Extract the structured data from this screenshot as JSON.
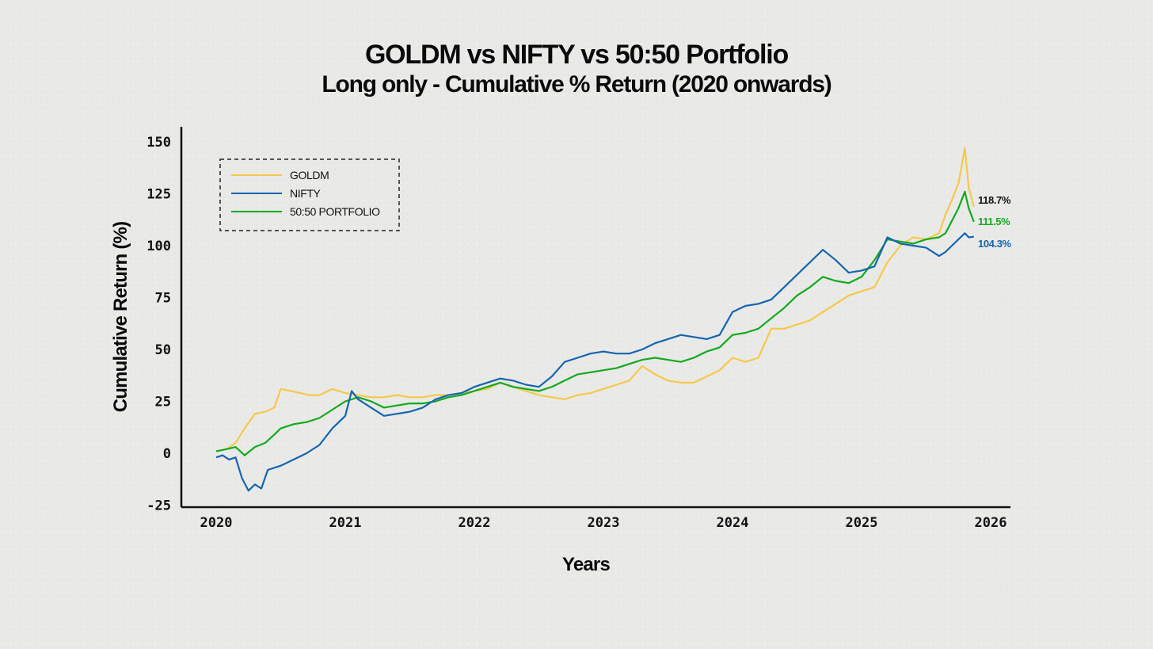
{
  "chart_data": {
    "type": "line",
    "title": "GOLDM vs NIFTY vs 50:50 Portfolio",
    "subtitle": "Long only - Cumulative % Return (2020 onwards)",
    "xlabel": "Years",
    "ylabel": "Cumulative Return (%)",
    "xlim": [
      2020,
      2026
    ],
    "ylim": [
      -25,
      160
    ],
    "x_ticks": [
      2020,
      2021,
      2022,
      2023,
      2024,
      2025,
      2026
    ],
    "x_tick_labels": [
      "2020",
      "2021",
      "2022",
      "2023",
      "2024",
      "2025",
      "2026"
    ],
    "y_ticks": [
      -25,
      0,
      25,
      50,
      75,
      100,
      125,
      150
    ],
    "y_tick_labels": [
      "-25",
      "0",
      "25",
      "50",
      "75",
      "100",
      "125",
      "150"
    ],
    "legend": {
      "position": "top-left",
      "entries": [
        "GOLDM",
        "NIFTY",
        "50:50 PORTFOLIO"
      ]
    },
    "series": [
      {
        "name": "GOLDM",
        "color": "#f6c84a",
        "end_label": "118.7%",
        "end_label_color": "#111111",
        "x": [
          2020.0,
          2020.08,
          2020.15,
          2020.22,
          2020.3,
          2020.38,
          2020.45,
          2020.5,
          2020.58,
          2020.65,
          2020.72,
          2020.8,
          2020.9,
          2021.0,
          2021.1,
          2021.2,
          2021.3,
          2021.4,
          2021.5,
          2021.6,
          2021.7,
          2021.8,
          2021.9,
          2022.0,
          2022.1,
          2022.2,
          2022.3,
          2022.4,
          2022.5,
          2022.6,
          2022.7,
          2022.8,
          2022.9,
          2023.0,
          2023.1,
          2023.2,
          2023.3,
          2023.4,
          2023.5,
          2023.6,
          2023.7,
          2023.8,
          2023.9,
          2024.0,
          2024.1,
          2024.2,
          2024.3,
          2024.4,
          2024.5,
          2024.6,
          2024.7,
          2024.8,
          2024.9,
          2025.0,
          2025.1,
          2025.2,
          2025.3,
          2025.4,
          2025.5,
          2025.6,
          2025.65,
          2025.7,
          2025.75,
          2025.8,
          2025.83,
          2025.87
        ],
        "values": [
          1,
          2,
          5,
          12,
          19,
          20,
          22,
          31,
          30,
          29,
          28,
          28,
          31,
          29,
          28,
          27,
          27,
          28,
          27,
          27,
          28,
          28,
          29,
          30,
          31,
          34,
          32,
          30,
          28,
          27,
          26,
          28,
          29,
          31,
          33,
          35,
          42,
          38,
          35,
          34,
          34,
          37,
          40,
          46,
          44,
          46,
          60,
          60,
          62,
          64,
          68,
          72,
          76,
          78,
          80,
          92,
          100,
          104,
          103,
          106,
          115,
          122,
          130,
          147,
          128,
          118.7
        ]
      },
      {
        "name": "NIFTY",
        "color": "#1565b0",
        "end_label": "104.3%",
        "end_label_color": "#1565b0",
        "x": [
          2020.0,
          2020.05,
          2020.1,
          2020.15,
          2020.2,
          2020.25,
          2020.3,
          2020.35,
          2020.4,
          2020.45,
          2020.5,
          2020.6,
          2020.7,
          2020.8,
          2020.9,
          2021.0,
          2021.05,
          2021.1,
          2021.2,
          2021.3,
          2021.4,
          2021.5,
          2021.6,
          2021.7,
          2021.8,
          2021.9,
          2022.0,
          2022.1,
          2022.2,
          2022.3,
          2022.4,
          2022.5,
          2022.6,
          2022.7,
          2022.8,
          2022.9,
          2023.0,
          2023.1,
          2023.2,
          2023.3,
          2023.4,
          2023.5,
          2023.6,
          2023.7,
          2023.8,
          2023.9,
          2024.0,
          2024.1,
          2024.2,
          2024.3,
          2024.4,
          2024.5,
          2024.6,
          2024.7,
          2024.8,
          2024.9,
          2025.0,
          2025.1,
          2025.2,
          2025.3,
          2025.4,
          2025.5,
          2025.6,
          2025.65,
          2025.7,
          2025.75,
          2025.8,
          2025.83,
          2025.87
        ],
        "values": [
          -2,
          -1,
          -3,
          -2,
          -12,
          -18,
          -15,
          -17,
          -8,
          -7,
          -6,
          -3,
          0,
          4,
          12,
          18,
          30,
          26,
          22,
          18,
          19,
          20,
          22,
          26,
          28,
          29,
          32,
          34,
          36,
          35,
          33,
          32,
          37,
          44,
          46,
          48,
          49,
          48,
          48,
          50,
          53,
          55,
          57,
          56,
          55,
          57,
          68,
          71,
          72,
          74,
          80,
          86,
          92,
          98,
          93,
          87,
          88,
          90,
          104,
          101,
          100,
          99,
          95,
          97,
          100,
          103,
          106,
          104,
          104.3
        ]
      },
      {
        "name": "50:50 PORTFOLIO",
        "color": "#12aa1e",
        "end_label": "111.5%",
        "end_label_color": "#12aa1e",
        "x": [
          2020.0,
          2020.08,
          2020.15,
          2020.22,
          2020.3,
          2020.38,
          2020.45,
          2020.5,
          2020.6,
          2020.7,
          2020.8,
          2020.9,
          2021.0,
          2021.1,
          2021.2,
          2021.3,
          2021.4,
          2021.5,
          2021.6,
          2021.7,
          2021.8,
          2021.9,
          2022.0,
          2022.1,
          2022.2,
          2022.3,
          2022.4,
          2022.5,
          2022.6,
          2022.7,
          2022.8,
          2022.9,
          2023.0,
          2023.1,
          2023.2,
          2023.3,
          2023.4,
          2023.5,
          2023.6,
          2023.7,
          2023.8,
          2023.9,
          2024.0,
          2024.1,
          2024.2,
          2024.3,
          2024.4,
          2024.5,
          2024.6,
          2024.7,
          2024.8,
          2024.9,
          2025.0,
          2025.1,
          2025.2,
          2025.3,
          2025.4,
          2025.5,
          2025.6,
          2025.65,
          2025.7,
          2025.75,
          2025.8,
          2025.83,
          2025.87
        ],
        "values": [
          1,
          2,
          3,
          -1,
          3,
          5,
          9,
          12,
          14,
          15,
          17,
          21,
          25,
          27,
          25,
          22,
          23,
          24,
          24,
          25,
          27,
          28,
          30,
          32,
          34,
          32,
          31,
          30,
          32,
          35,
          38,
          39,
          40,
          41,
          43,
          45,
          46,
          45,
          44,
          46,
          49,
          51,
          57,
          58,
          60,
          65,
          70,
          76,
          80,
          85,
          83,
          82,
          85,
          93,
          103,
          102,
          101,
          103,
          104,
          106,
          112,
          118,
          126,
          118,
          111.5
        ]
      }
    ]
  }
}
